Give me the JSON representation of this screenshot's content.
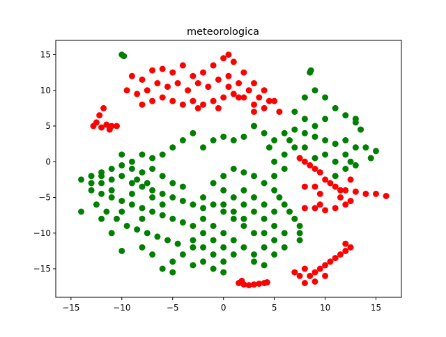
{
  "chart_data": {
    "type": "scatter",
    "title": "meteorologica",
    "xlabel": "",
    "ylabel": "",
    "xlim": [
      -16.5,
      17.5
    ],
    "ylim": [
      -19,
      17
    ],
    "xticks": [
      -15,
      -10,
      -5,
      0,
      5,
      10,
      15
    ],
    "yticks": [
      -15,
      -10,
      -5,
      0,
      5,
      10,
      15
    ],
    "xtick_labels": [
      "−15",
      "−10",
      "−5",
      "0",
      "5",
      "10",
      "15"
    ],
    "ytick_labels": [
      "−15",
      "−10",
      "−5",
      "0",
      "5",
      "10",
      "15"
    ],
    "grid": false,
    "legend": "none",
    "series": [
      {
        "color": "#ff0000",
        "points": [
          [
            -9,
            12
          ],
          [
            -8,
            11.5
          ],
          [
            -7,
            12.8
          ],
          [
            -6,
            13
          ],
          [
            -5,
            12.5
          ],
          [
            -4,
            13.5
          ],
          [
            -3,
            12
          ],
          [
            -2,
            12.5
          ],
          [
            -1,
            13.5
          ],
          [
            0,
            14.5
          ],
          [
            0.5,
            15
          ],
          [
            1,
            14
          ],
          [
            2,
            12.5
          ],
          [
            3,
            11
          ],
          [
            4,
            10
          ],
          [
            5,
            8.5
          ],
          [
            5.5,
            7
          ],
          [
            -9.5,
            10
          ],
          [
            -8.5,
            9.5
          ],
          [
            -7.5,
            10
          ],
          [
            -6.5,
            11
          ],
          [
            -5.5,
            10.5
          ],
          [
            -4.5,
            11
          ],
          [
            -3.5,
            10
          ],
          [
            -2.5,
            11
          ],
          [
            -1.5,
            10.5
          ],
          [
            -0.5,
            11.5
          ],
          [
            0.5,
            12
          ],
          [
            1.5,
            11
          ],
          [
            2.5,
            10
          ],
          [
            3.5,
            9
          ],
          [
            4.5,
            8.5
          ],
          [
            -8,
            8
          ],
          [
            -7,
            8.5
          ],
          [
            -6,
            9
          ],
          [
            -5,
            8.5
          ],
          [
            -4,
            8
          ],
          [
            -3,
            8.5
          ],
          [
            -2,
            8
          ],
          [
            -1,
            8.5
          ],
          [
            0,
            9
          ],
          [
            1,
            9.5
          ],
          [
            2,
            9
          ],
          [
            3,
            8
          ],
          [
            4,
            7.5
          ],
          [
            -2.5,
            7.5
          ],
          [
            -0.5,
            7.5
          ],
          [
            0.5,
            10.5
          ],
          [
            1.5,
            9
          ],
          [
            -12.5,
            5.5
          ],
          [
            -12,
            4.8
          ],
          [
            -11.5,
            5.2
          ],
          [
            -11,
            5
          ],
          [
            -12.2,
            6.5
          ],
          [
            -11.8,
            7.5
          ],
          [
            -11.2,
            4.5
          ],
          [
            -12.8,
            5
          ],
          [
            -10.5,
            5
          ],
          [
            3,
            5
          ],
          [
            3,
            7
          ],
          [
            7.5,
            0.5
          ],
          [
            8,
            0
          ],
          [
            8.5,
            -0.5
          ],
          [
            9,
            -1
          ],
          [
            9.5,
            -1.5
          ],
          [
            10,
            -2.5
          ],
          [
            10.5,
            -3
          ],
          [
            11,
            -3.5
          ],
          [
            11.5,
            -4
          ],
          [
            12,
            -4
          ],
          [
            13,
            -4.2
          ],
          [
            14,
            -4.5
          ],
          [
            15,
            -4.5
          ],
          [
            16,
            -4.8
          ],
          [
            9,
            -3.5
          ],
          [
            9.5,
            -4.5
          ],
          [
            8,
            -3.5
          ],
          [
            12.5,
            -2.5
          ],
          [
            8,
            -6.5
          ],
          [
            9,
            -6.5
          ],
          [
            10,
            -6.8
          ],
          [
            11,
            -6.5
          ],
          [
            12,
            -6
          ],
          [
            12.5,
            -5.5
          ],
          [
            9.5,
            -6
          ],
          [
            11.5,
            -5
          ],
          [
            8,
            -15
          ],
          [
            8.5,
            -16
          ],
          [
            9,
            -15.5
          ],
          [
            9.5,
            -15
          ],
          [
            10,
            -14.5
          ],
          [
            10.5,
            -14
          ],
          [
            11,
            -13.5
          ],
          [
            11.5,
            -13
          ],
          [
            12,
            -12.5
          ],
          [
            12.5,
            -12
          ],
          [
            8,
            -17
          ],
          [
            9,
            -16.8
          ],
          [
            10,
            -16
          ],
          [
            7.5,
            -16
          ],
          [
            7,
            -15.5
          ],
          [
            12,
            -11.5
          ],
          [
            1.5,
            -17
          ],
          [
            2,
            -17.2
          ],
          [
            2.5,
            -17.3
          ],
          [
            3,
            -17.2
          ],
          [
            3.5,
            -17.1
          ],
          [
            4,
            -17
          ],
          [
            4.3,
            -16.9
          ],
          [
            1.8,
            -16.7
          ]
        ]
      },
      {
        "color": "#007f00",
        "points": [
          [
            -10,
            15
          ],
          [
            -9.8,
            14.8
          ],
          [
            -14,
            -2.5
          ],
          [
            -13,
            -2
          ],
          [
            -12,
            -1.5
          ],
          [
            -11,
            -1
          ],
          [
            -10,
            -0.5
          ],
          [
            -9,
            -1
          ],
          [
            -8,
            -1.5
          ],
          [
            -7,
            -1
          ],
          [
            -6,
            -2
          ],
          [
            -5,
            -3
          ],
          [
            -4,
            -3.5
          ],
          [
            -13,
            -4
          ],
          [
            -12,
            -4.5
          ],
          [
            -11,
            -5
          ],
          [
            -10,
            -5.5
          ],
          [
            -9,
            -6
          ],
          [
            -8,
            -6.5
          ],
          [
            -7,
            -7
          ],
          [
            -6,
            -7.5
          ],
          [
            -5,
            -8
          ],
          [
            -4,
            -8.5
          ],
          [
            -12.5,
            -6
          ],
          [
            -11.5,
            -7
          ],
          [
            -10.5,
            -8
          ],
          [
            -9.5,
            -9
          ],
          [
            -8.5,
            -9.5
          ],
          [
            -7.5,
            -10
          ],
          [
            -6.5,
            -10.5
          ],
          [
            -5.5,
            -11
          ],
          [
            -4.5,
            -11.5
          ],
          [
            -14,
            -7
          ],
          [
            -12,
            -8
          ],
          [
            -11,
            -10
          ],
          [
            -10,
            -12.5
          ],
          [
            -8,
            -12
          ],
          [
            -7,
            -13
          ],
          [
            -6,
            -15
          ],
          [
            -5,
            -14
          ],
          [
            -4,
            -13
          ],
          [
            -3,
            -12
          ],
          [
            -5,
            -15.5
          ],
          [
            -13,
            -3
          ],
          [
            -12,
            -3
          ],
          [
            -11,
            -2.5
          ],
          [
            -10,
            -2
          ],
          [
            -9,
            -3
          ],
          [
            -8,
            -3.5
          ],
          [
            -7,
            -4
          ],
          [
            -6,
            -4.5
          ],
          [
            -5,
            -5
          ],
          [
            -4,
            -5.5
          ],
          [
            -3,
            -6
          ],
          [
            -2,
            -6.5
          ],
          [
            -8,
            -8
          ],
          [
            -7,
            -5
          ],
          [
            -6,
            -6
          ],
          [
            -9,
            -4.5
          ],
          [
            -10,
            -7
          ],
          [
            -11,
            -4
          ],
          [
            -12,
            -2
          ],
          [
            -8.5,
            -2.5
          ],
          [
            -7.5,
            -3
          ],
          [
            -2,
            -5
          ],
          [
            -1,
            -6
          ],
          [
            0,
            -7
          ],
          [
            1,
            -8
          ],
          [
            2,
            -9
          ],
          [
            3,
            -10
          ],
          [
            -2,
            -8
          ],
          [
            -1,
            -9
          ],
          [
            0,
            -10
          ],
          [
            1,
            -11
          ],
          [
            2,
            -12
          ],
          [
            3,
            -13
          ],
          [
            -3,
            -9
          ],
          [
            -2,
            -10
          ],
          [
            -1,
            -11
          ],
          [
            0,
            -12
          ],
          [
            1,
            -13
          ],
          [
            -3,
            -11
          ],
          [
            -2,
            -12
          ],
          [
            -1,
            -13
          ],
          [
            0,
            -14
          ],
          [
            -2,
            -14
          ],
          [
            -1,
            -15
          ],
          [
            0,
            -15.5
          ],
          [
            -3,
            -14.5
          ],
          [
            -1,
            -3
          ],
          [
            0,
            -2
          ],
          [
            1,
            -1
          ],
          [
            2,
            -1.5
          ],
          [
            3,
            -2
          ],
          [
            4,
            -3
          ],
          [
            5,
            -4
          ],
          [
            5.5,
            -5
          ],
          [
            6,
            -6
          ],
          [
            6.5,
            -7
          ],
          [
            7,
            -8
          ],
          [
            7.5,
            -9
          ],
          [
            7.5,
            -10
          ],
          [
            7.5,
            -11
          ],
          [
            2,
            -4
          ],
          [
            3,
            -5
          ],
          [
            4,
            -6
          ],
          [
            5,
            -7
          ],
          [
            4,
            -8
          ],
          [
            5,
            -9
          ],
          [
            6,
            -10
          ],
          [
            5,
            -11
          ],
          [
            6,
            -12
          ],
          [
            4,
            -12
          ],
          [
            3,
            -14
          ],
          [
            4,
            -14.5
          ],
          [
            5,
            -13
          ],
          [
            0,
            -4
          ],
          [
            1,
            -5
          ],
          [
            2,
            -6
          ],
          [
            0,
            -6
          ],
          [
            1,
            -7
          ],
          [
            2,
            -8
          ],
          [
            3,
            -7
          ],
          [
            4,
            -10
          ],
          [
            -2,
            2
          ],
          [
            -1,
            3
          ],
          [
            0,
            3.5
          ],
          [
            1,
            3
          ],
          [
            2,
            3.5
          ],
          [
            3,
            5
          ],
          [
            4,
            4
          ],
          [
            5,
            3
          ],
          [
            6,
            4
          ],
          [
            7,
            4.5
          ],
          [
            8,
            4
          ],
          [
            9,
            3.5
          ],
          [
            10,
            3
          ],
          [
            11,
            2.5
          ],
          [
            12,
            3
          ],
          [
            13,
            5.5
          ],
          [
            13,
            2
          ],
          [
            12,
            1
          ],
          [
            11,
            0
          ],
          [
            10,
            1
          ],
          [
            9,
            0.5
          ],
          [
            8,
            2
          ],
          [
            -3,
            4
          ],
          [
            -4,
            3
          ],
          [
            -5,
            2
          ],
          [
            -6,
            1
          ],
          [
            -7,
            0.5
          ],
          [
            -8,
            1
          ],
          [
            -9,
            0
          ],
          [
            -10,
            1
          ],
          [
            7,
            7
          ],
          [
            8,
            9
          ],
          [
            9,
            10
          ],
          [
            10,
            9
          ],
          [
            11,
            7.5
          ],
          [
            12,
            6.5
          ],
          [
            13,
            6
          ],
          [
            13.5,
            4.5
          ],
          [
            10,
            6
          ],
          [
            9,
            5
          ],
          [
            8,
            6
          ],
          [
            8.5,
            12.5
          ],
          [
            8.6,
            12.8
          ],
          [
            14,
            2
          ],
          [
            15,
            1.5
          ],
          [
            14.5,
            0.5
          ],
          [
            13,
            -0.5
          ],
          [
            12,
            -1
          ],
          [
            11,
            -2
          ],
          [
            12.5,
            0
          ],
          [
            5,
            0
          ],
          [
            6,
            1
          ],
          [
            7,
            2
          ],
          [
            6,
            -1
          ],
          [
            5,
            -2
          ],
          [
            6.5,
            3
          ],
          [
            4.5,
            2
          ]
        ]
      }
    ]
  }
}
